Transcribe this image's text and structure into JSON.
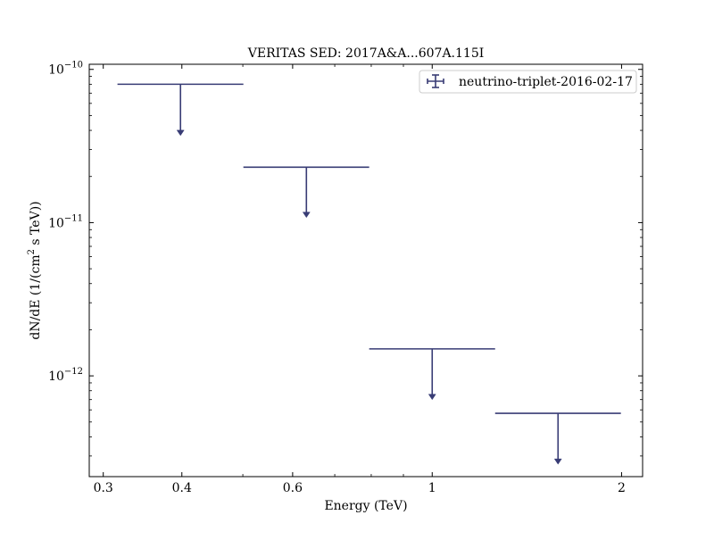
{
  "chart_data": {
    "type": "scatter",
    "title": "VERITAS SED: 2017A&A...607A.115I",
    "xlabel": "Energy (TeV)",
    "ylabel_parts": {
      "prefix": "dN/dE (1/(cm",
      "sup": "2",
      "suffix": " s TeV))"
    },
    "xscale": "log",
    "yscale": "log",
    "xlim": [
      0.285,
      2.16
    ],
    "ylim": [
      2.2e-13,
      1.08e-10
    ],
    "x_ticks": [
      {
        "value": 0.3,
        "label": "0.3"
      },
      {
        "value": 0.4,
        "label": "0.4"
      },
      {
        "value": 0.6,
        "label": "0.6"
      },
      {
        "value": 1,
        "label": "1"
      },
      {
        "value": 2,
        "label": "2"
      }
    ],
    "y_ticks": [
      {
        "value": 1e-10,
        "base": "10",
        "exp": "−10"
      },
      {
        "value": 1e-11,
        "base": "10",
        "exp": "−11"
      },
      {
        "value": 1e-12,
        "base": "10",
        "exp": "−12"
      }
    ],
    "legend_position": "top-right",
    "series": [
      {
        "name": "neutrino-triplet-2016-02-17",
        "color": "#383c75",
        "upper_limit": true,
        "points": [
          {
            "x": 0.398,
            "xmin": 0.316,
            "xmax": 0.501,
            "y": 8e-11,
            "ul_end": 3.7e-11
          },
          {
            "x": 0.631,
            "xmin": 0.501,
            "xmax": 0.794,
            "y": 2.3e-11,
            "ul_end": 1.08e-11
          },
          {
            "x": 1.0,
            "xmin": 0.794,
            "xmax": 1.259,
            "y": 1.5e-12,
            "ul_end": 7e-13
          },
          {
            "x": 1.585,
            "xmin": 1.259,
            "xmax": 1.995,
            "y": 5.7e-13,
            "ul_end": 2.65e-13
          }
        ]
      }
    ]
  }
}
